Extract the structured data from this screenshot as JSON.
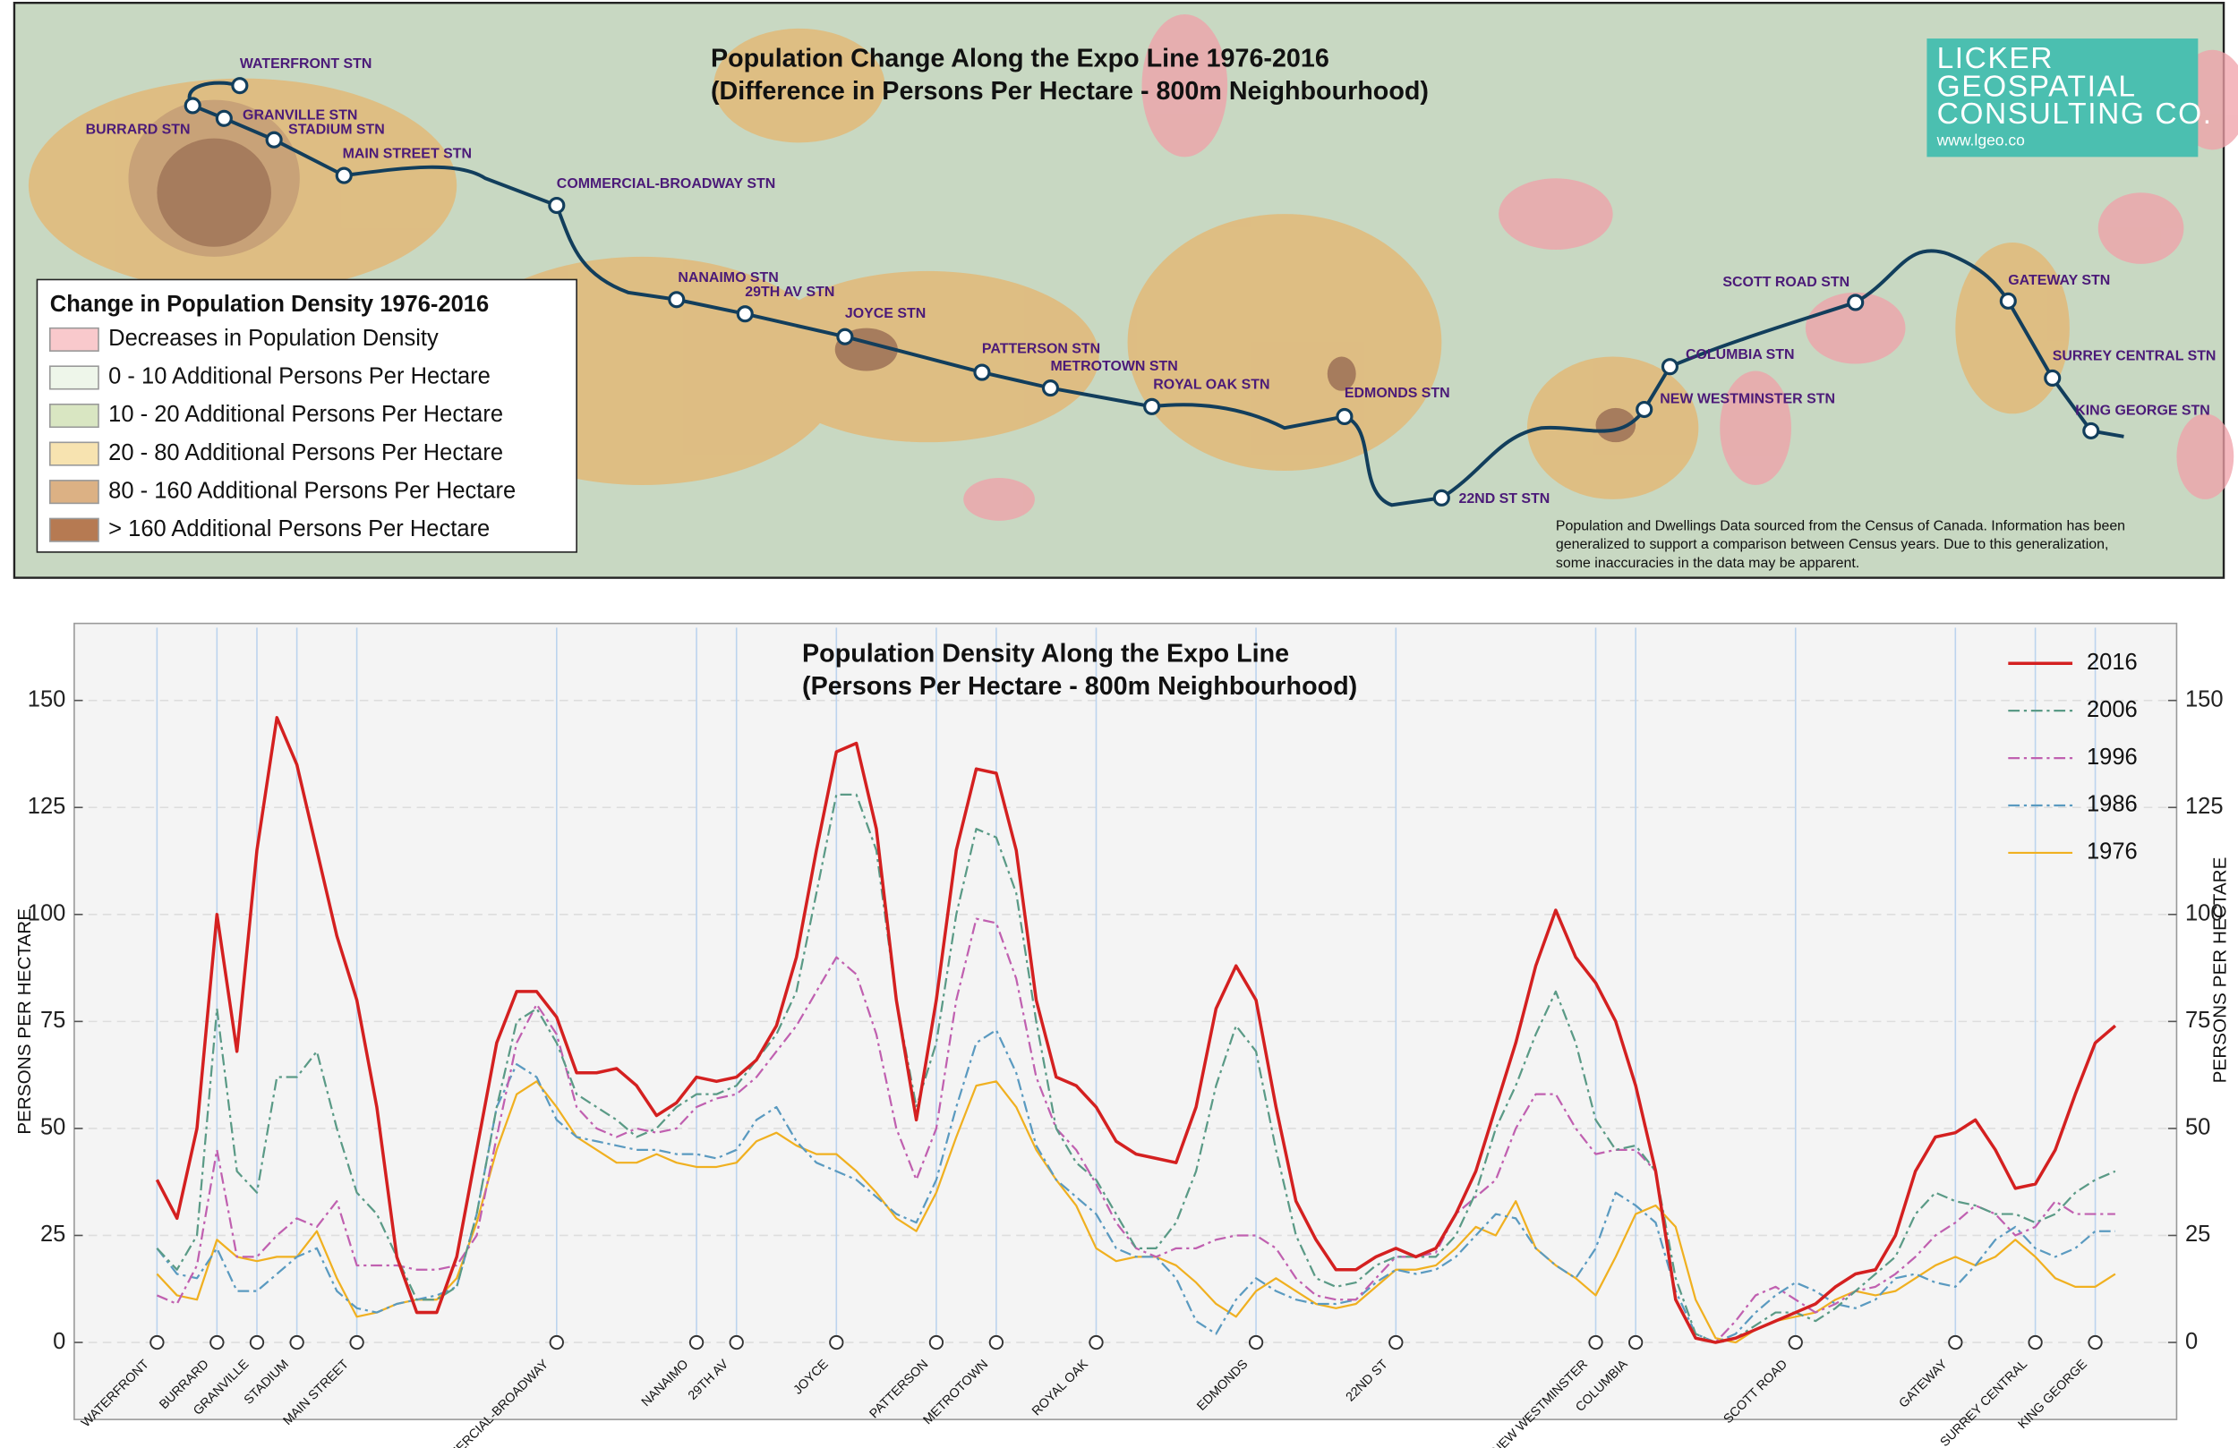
{
  "map": {
    "title": [
      "Population Change  Along the Expo Line 1976-2016",
      "(Difference in Persons Per Hectare - 800m Neighbourhood)"
    ],
    "logo": [
      "LICKER",
      "GEOSPATIAL",
      "CONSULTING CO.",
      "www.lgeo.co"
    ],
    "legend": {
      "title": "Change in Population Density 1976-2016",
      "items": [
        "Decreases in Population Density",
        "0 - 10 Additional Persons Per Hectare",
        "10 - 20 Additional Persons Per Hectare",
        "20 - 80 Additional Persons Per Hectare",
        "80 - 160 Additional Persons Per Hectare",
        "> 160 Additional Persons Per Hectare"
      ],
      "colors": [
        "#f9c9cc",
        "#eef6ea",
        "#d9e6c2",
        "#f7e3b0",
        "#dcb184",
        "#b67a52"
      ]
    },
    "stations": [
      "WATERFRONT STN",
      "BURRARD STN",
      "GRANVILLE STN",
      "STADIUM STN",
      "MAIN STREET STN",
      "COMMERCIAL-BROADWAY STN",
      "NANAIMO STN",
      "29TH AV STN",
      "JOYCE STN",
      "PATTERSON STN",
      "METROTOWN STN",
      "ROYAL OAK STN",
      "EDMONDS STN",
      "22ND ST STN",
      "NEW WESTMINSTER STN",
      "COLUMBIA STN",
      "SCOTT ROAD STN",
      "GATEWAY STN",
      "SURREY CENTRAL STN",
      "KING GEORGE STN"
    ],
    "note": [
      "Population and Dwellings Data sourced from the Census of Canada. Information has been",
      "generalized to support a comparison between Census years.  Due to this generalization,",
      "some inaccuracies in the data may be apparent."
    ]
  },
  "chart_data": {
    "type": "line",
    "title": [
      "Population Density  Along the Expo Line",
      "(Persons Per Hectare - 800m Neighbourhood)"
    ],
    "ylabel": "PERSONS PER HECTARE",
    "y2label": "PERSONS PER HECTARE",
    "categories": [
      "WATERFRONT",
      null,
      null,
      "BURRARD",
      null,
      "GRANVILLE",
      null,
      "STADIUM",
      null,
      null,
      "MAIN STREET",
      null,
      null,
      null,
      null,
      null,
      null,
      null,
      null,
      null,
      "COMMERCIAL-BROADWAY",
      null,
      null,
      null,
      null,
      null,
      null,
      "NANAIMO",
      null,
      "29TH AV",
      null,
      null,
      null,
      null,
      "JOYCE",
      null,
      null,
      null,
      null,
      "PATTERSON",
      null,
      null,
      "METROTOWN",
      null,
      null,
      null,
      null,
      "ROYAL OAK",
      null,
      null,
      null,
      null,
      null,
      null,
      null,
      "EDMONDS",
      null,
      null,
      null,
      null,
      null,
      null,
      "22ND ST",
      null,
      null,
      null,
      null,
      null,
      null,
      null,
      null,
      null,
      "NEW WESTMINSTER",
      null,
      "COLUMBIA",
      null,
      null,
      null,
      null,
      null,
      null,
      null,
      "SCOTT ROAD",
      null,
      null,
      null,
      null,
      null,
      null,
      null,
      "GATEWAY",
      null,
      null,
      null,
      "SURREY CENTRAL",
      null,
      null,
      "KING GEORGE",
      null
    ],
    "series": [
      {
        "name": "2016",
        "color": "#d42020",
        "dash": "none",
        "values": [
          38,
          29,
          50,
          100,
          68,
          115,
          146,
          135,
          115,
          95,
          80,
          55,
          20,
          7,
          7,
          20,
          45,
          70,
          82,
          82,
          76,
          63,
          63,
          64,
          60,
          53,
          56,
          62,
          61,
          62,
          66,
          74,
          90,
          115,
          138,
          140,
          120,
          80,
          52,
          80,
          115,
          134,
          133,
          115,
          80,
          62,
          60,
          55,
          47,
          44,
          43,
          42,
          55,
          78,
          88,
          80,
          55,
          33,
          24,
          17,
          17,
          20,
          22,
          20,
          22,
          30,
          40,
          55,
          70,
          88,
          101,
          90,
          84,
          75,
          60,
          40,
          10,
          1,
          0,
          1,
          3,
          5,
          7,
          9,
          13,
          16,
          17,
          25,
          40,
          48,
          49,
          52,
          45,
          36,
          37,
          45,
          58,
          70,
          74
        ]
      },
      {
        "name": "2006",
        "color": "#5a9a86",
        "dash": "8 3 2 3",
        "values": [
          22,
          17,
          25,
          78,
          40,
          35,
          62,
          62,
          68,
          50,
          35,
          30,
          20,
          10,
          10,
          13,
          30,
          55,
          75,
          78,
          70,
          58,
          55,
          52,
          48,
          50,
          55,
          58,
          58,
          60,
          66,
          72,
          82,
          105,
          128,
          128,
          115,
          80,
          55,
          70,
          100,
          120,
          118,
          105,
          75,
          50,
          42,
          38,
          30,
          22,
          22,
          28,
          40,
          60,
          74,
          68,
          45,
          25,
          15,
          13,
          14,
          18,
          20,
          20,
          20,
          25,
          35,
          50,
          60,
          72,
          82,
          70,
          52,
          45,
          46,
          40,
          15,
          2,
          0,
          1,
          4,
          7,
          7,
          5,
          8,
          12,
          16,
          20,
          30,
          35,
          33,
          32,
          30,
          30,
          28,
          30,
          35,
          38,
          40
        ]
      },
      {
        "name": "1996",
        "color": "#c060b0",
        "dash": "8 3 2 3",
        "values": [
          11,
          9,
          18,
          45,
          20,
          20,
          25,
          29,
          27,
          33,
          18,
          18,
          18,
          17,
          17,
          18,
          25,
          48,
          70,
          79,
          72,
          55,
          50,
          48,
          50,
          49,
          50,
          55,
          57,
          58,
          62,
          68,
          74,
          82,
          90,
          86,
          72,
          50,
          38,
          50,
          80,
          99,
          98,
          85,
          62,
          50,
          45,
          37,
          28,
          22,
          20,
          22,
          22,
          24,
          25,
          25,
          22,
          15,
          11,
          10,
          10,
          15,
          20,
          20,
          21,
          30,
          34,
          38,
          50,
          58,
          58,
          50,
          44,
          45,
          45,
          40,
          10,
          1,
          0,
          5,
          11,
          13,
          10,
          7,
          9,
          12,
          13,
          16,
          20,
          25,
          28,
          32,
          30,
          25,
          27,
          33,
          30,
          30,
          30
        ]
      },
      {
        "name": "1986",
        "color": "#5a9ac0",
        "dash": "8 3 2 3",
        "values": [
          22,
          16,
          15,
          22,
          12,
          12,
          16,
          20,
          22,
          12,
          8,
          7,
          9,
          10,
          11,
          13,
          30,
          55,
          65,
          62,
          52,
          48,
          47,
          46,
          45,
          45,
          44,
          44,
          43,
          45,
          52,
          55,
          47,
          42,
          40,
          38,
          34,
          30,
          28,
          38,
          55,
          70,
          73,
          63,
          46,
          38,
          34,
          30,
          22,
          20,
          20,
          15,
          5,
          2,
          10,
          15,
          12,
          10,
          9,
          9,
          10,
          14,
          17,
          16,
          17,
          20,
          25,
          30,
          29,
          22,
          18,
          15,
          22,
          35,
          32,
          28,
          12,
          2,
          0,
          2,
          7,
          11,
          14,
          12,
          9,
          8,
          10,
          15,
          16,
          14,
          13,
          18,
          24,
          27,
          22,
          20,
          22,
          26,
          26
        ]
      },
      {
        "name": "1976",
        "color": "#f0b020",
        "dash": "none",
        "values": [
          16,
          11,
          10,
          24,
          20,
          19,
          20,
          20,
          26,
          15,
          6,
          7,
          9,
          10,
          10,
          15,
          28,
          45,
          58,
          61,
          55,
          48,
          45,
          42,
          42,
          44,
          42,
          41,
          41,
          42,
          47,
          49,
          46,
          44,
          44,
          40,
          35,
          29,
          26,
          35,
          48,
          60,
          61,
          55,
          45,
          38,
          32,
          22,
          19,
          20,
          20,
          18,
          14,
          9,
          6,
          12,
          15,
          12,
          9,
          8,
          9,
          13,
          17,
          17,
          18,
          22,
          27,
          25,
          33,
          22,
          18,
          15,
          11,
          20,
          30,
          32,
          27,
          10,
          1,
          0,
          3,
          5,
          6,
          7,
          10,
          12,
          11,
          12,
          15,
          18,
          20,
          18,
          20,
          24,
          20,
          15,
          13,
          13,
          16
        ]
      }
    ],
    "ylim": [
      -18,
      168
    ],
    "yticks": [
      0,
      25,
      50,
      75,
      100,
      125,
      150
    ],
    "y2lim": [
      -18,
      168
    ],
    "y2ticks": [
      0,
      25,
      50,
      75,
      100,
      125,
      150
    ],
    "grid": true,
    "legend": "upper right"
  }
}
